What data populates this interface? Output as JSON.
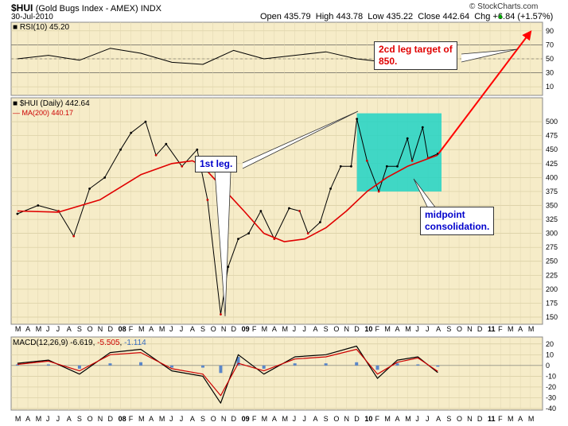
{
  "header": {
    "symbol": "$HUI",
    "index_name": "(Gold Bugs Index - AMEX) INDX",
    "date": "30-Jul-2010",
    "open_label": "Open",
    "open": "435.79",
    "high_label": "High",
    "high": "443.78",
    "low_label": "Low",
    "low": "435.22",
    "close_label": "Close",
    "close": "442.64",
    "chg_label": "Chg",
    "chg": "+6.84 (+1.57%)",
    "source": "© StockCharts.com"
  },
  "legends": {
    "rsi": "RSI(10) 45.20",
    "price": "$HUI (Daily) 442.64",
    "ma": "MA(200) 440.17",
    "macd_label": "MACD(12,26,9)",
    "macd_value": "-6.619",
    "signal_value": "-5.505",
    "hist_value": "-1.114"
  },
  "annotations": {
    "leg1": "1st leg.",
    "target": "2cd leg target of\n850.",
    "midpoint": "midpoint\nconsolidation."
  },
  "colors": {
    "panel_bg": "#f6ecc8",
    "price_up": "#000000",
    "price_down": "#cc0000",
    "ma": "#e00000",
    "consolidation_box": "#20d4c4",
    "callout_text_blue": "#0000cc",
    "callout_text_red": "#e00000",
    "arrow": "#ff0000",
    "histogram": "#5b87c9"
  },
  "chart_data": [
    {
      "type": "line",
      "title": "RSI(10) 45.20",
      "ylim": [
        0,
        100
      ],
      "yticks": [
        10,
        30,
        50,
        70,
        90
      ],
      "reference_lines": [
        30,
        50,
        70
      ],
      "series": [
        {
          "name": "RSI(10)",
          "x": [
            "2007-03-01",
            "2007-06-01",
            "2007-09-01",
            "2007-12-01",
            "2008-03-01",
            "2008-06-01",
            "2008-09-01",
            "2008-12-01",
            "2009-03-01",
            "2009-06-01",
            "2009-09-01",
            "2009-12-01",
            "2010-03-01",
            "2010-06-01",
            "2010-07-30"
          ],
          "values": [
            50,
            55,
            48,
            65,
            58,
            45,
            42,
            62,
            50,
            55,
            60,
            50,
            45,
            55,
            45.2
          ]
        }
      ],
      "grid": true
    },
    {
      "type": "line",
      "title": "$HUI (Daily) 442.64",
      "ylim": [
        140,
        540
      ],
      "yticks": [
        150,
        175,
        200,
        225,
        250,
        275,
        300,
        325,
        350,
        375,
        400,
        425,
        450,
        475,
        500
      ],
      "xticks": [
        "M",
        "A",
        "M",
        "J",
        "J",
        "A",
        "S",
        "O",
        "N",
        "D",
        "08",
        "F",
        "M",
        "A",
        "M",
        "J",
        "J",
        "A",
        "S",
        "O",
        "N",
        "D",
        "09",
        "F",
        "M",
        "A",
        "M",
        "J",
        "J",
        "A",
        "S",
        "O",
        "N",
        "D",
        "10",
        "F",
        "M",
        "A",
        "M",
        "J",
        "J",
        "A",
        "S",
        "O",
        "N",
        "D",
        "11",
        "F",
        "M",
        "A",
        "M"
      ],
      "series": [
        {
          "name": "$HUI (Daily)",
          "x": [
            "2007-03-01",
            "2007-05-01",
            "2007-07-01",
            "2007-08-15",
            "2007-10-01",
            "2007-11-15",
            "2008-01-01",
            "2008-02-01",
            "2008-03-15",
            "2008-04-15",
            "2008-05-15",
            "2008-07-01",
            "2008-08-15",
            "2008-09-15",
            "2008-10-24",
            "2008-11-15",
            "2008-12-15",
            "2009-01-15",
            "2009-02-20",
            "2009-04-01",
            "2009-05-15",
            "2009-06-15",
            "2009-07-10",
            "2009-08-15",
            "2009-09-15",
            "2009-10-15",
            "2009-11-15",
            "2009-12-02",
            "2010-01-01",
            "2010-02-05",
            "2010-03-01",
            "2010-04-01",
            "2010-05-01",
            "2010-05-15",
            "2010-06-15",
            "2010-07-01",
            "2010-07-30"
          ],
          "values": [
            335,
            350,
            340,
            295,
            380,
            400,
            450,
            480,
            500,
            440,
            460,
            420,
            450,
            360,
            155,
            240,
            290,
            300,
            340,
            290,
            345,
            340,
            300,
            320,
            380,
            420,
            420,
            505,
            430,
            375,
            420,
            420,
            470,
            430,
            490,
            435,
            442.64
          ]
        },
        {
          "name": "MA(200)",
          "x": [
            "2007-03-01",
            "2007-07-01",
            "2007-11-01",
            "2008-03-01",
            "2008-06-01",
            "2008-08-01",
            "2008-09-01",
            "2008-11-01",
            "2009-01-01",
            "2009-03-01",
            "2009-05-01",
            "2009-07-01",
            "2009-09-01",
            "2009-11-01",
            "2010-01-01",
            "2010-03-01",
            "2010-05-01",
            "2010-07-30"
          ],
          "values": [
            340,
            338,
            360,
            405,
            425,
            430,
            420,
            380,
            340,
            300,
            285,
            290,
            310,
            340,
            375,
            400,
            420,
            440.17
          ]
        }
      ],
      "shaded_regions": [
        {
          "x_start": "2009-12-02",
          "x_end": "2010-08-10",
          "y_start": 375,
          "y_end": 515
        }
      ],
      "projection": {
        "from": {
          "x": "2010-08-01",
          "value": 442.64
        },
        "to": {
          "x": "2011-05-01",
          "label": "850"
        }
      },
      "grid": true
    },
    {
      "type": "line",
      "title": "MACD(12,26,9) -6.619, -5.505, -1.114",
      "ylim": [
        -40,
        25
      ],
      "yticks": [
        -40,
        -30,
        -20,
        -10,
        0,
        10,
        20
      ],
      "series": [
        {
          "name": "MACD",
          "x": [
            "2007-03-01",
            "2007-06-01",
            "2007-09-01",
            "2007-12-01",
            "2008-03-01",
            "2008-06-01",
            "2008-09-01",
            "2008-10-24",
            "2008-12-15",
            "2009-03-01",
            "2009-06-01",
            "2009-09-01",
            "2009-12-01",
            "2010-02-01",
            "2010-04-01",
            "2010-06-01",
            "2010-07-30"
          ],
          "values": [
            2,
            5,
            -8,
            12,
            15,
            -5,
            -10,
            -35,
            10,
            -8,
            8,
            10,
            18,
            -12,
            5,
            8,
            -6.619
          ]
        },
        {
          "name": "Signal",
          "x": [
            "2007-03-01",
            "2007-06-01",
            "2007-09-01",
            "2007-12-01",
            "2008-03-01",
            "2008-06-01",
            "2008-09-01",
            "2008-10-24",
            "2008-12-15",
            "2009-03-01",
            "2009-06-01",
            "2009-09-01",
            "2009-12-01",
            "2010-02-01",
            "2010-04-01",
            "2010-06-01",
            "2010-07-30"
          ],
          "values": [
            1,
            4,
            -5,
            10,
            12,
            -3,
            -8,
            -28,
            2,
            -5,
            6,
            8,
            15,
            -8,
            3,
            7,
            -5.505
          ]
        }
      ],
      "grid": true
    }
  ]
}
